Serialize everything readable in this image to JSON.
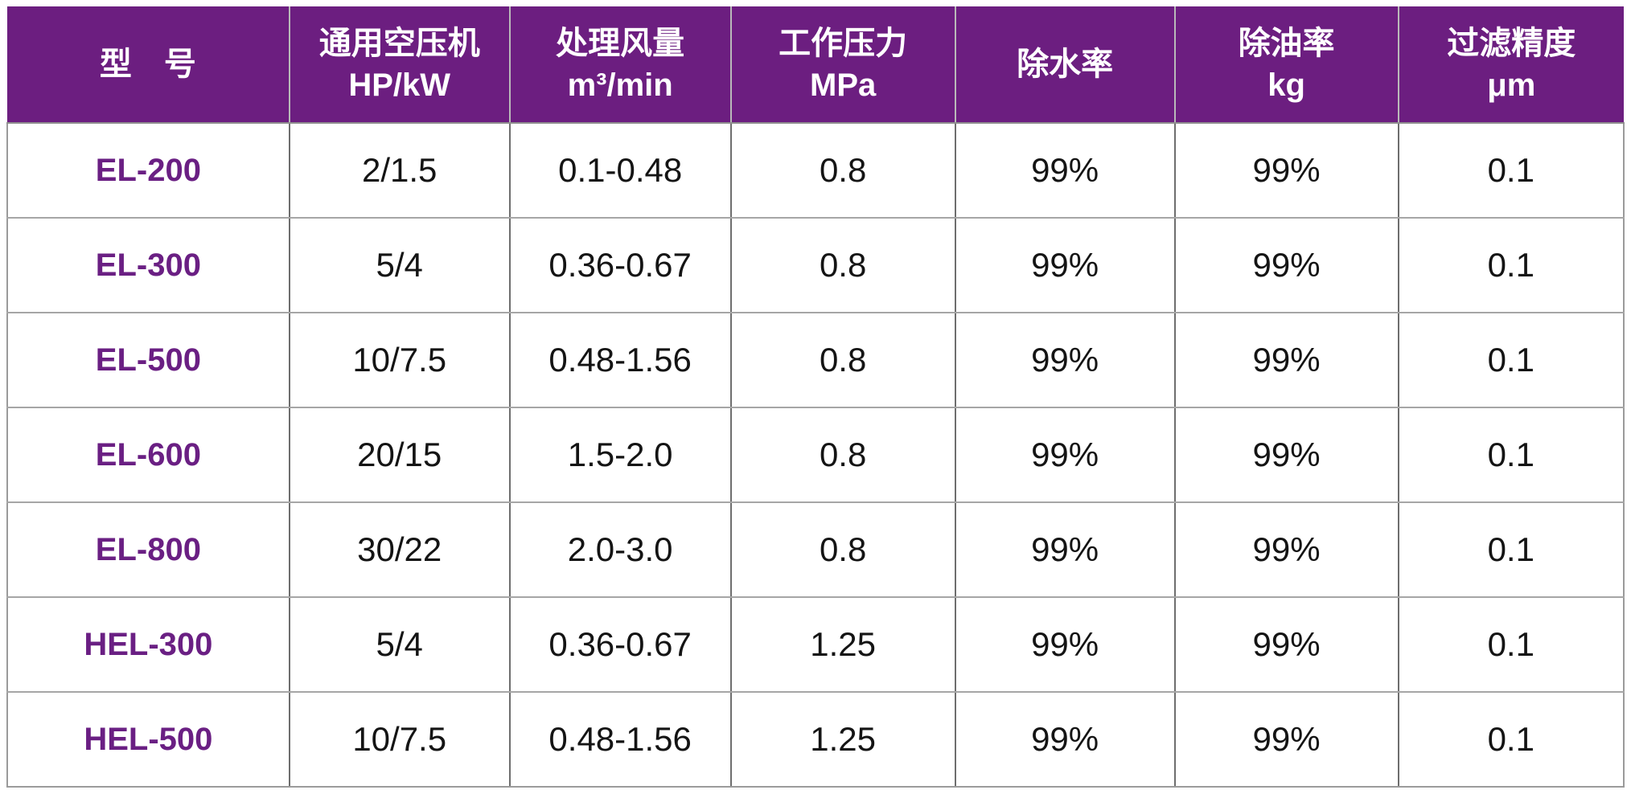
{
  "colors": {
    "header_bg": "#6C1E80",
    "model_text": "#6A1F83",
    "header_text": "#FFFFFF",
    "body_text": "#141414",
    "vertical_border": "#6E6E6E",
    "horizontal_border": "#A6A6A6"
  },
  "table": {
    "columns": [
      {
        "line1": "型　号",
        "line2": ""
      },
      {
        "line1": "通用空压机",
        "line2": "HP/kW"
      },
      {
        "line1": "处理风量",
        "line2": "m³/min"
      },
      {
        "line1": "工作压力",
        "line2": "MPa"
      },
      {
        "line1": "除水率",
        "line2": ""
      },
      {
        "line1": "除油率",
        "line2": "kg"
      },
      {
        "line1": "过滤精度",
        "line2": "μm"
      }
    ],
    "rows": [
      {
        "model": "EL-200",
        "hp_kw": "2/1.5",
        "flow": "0.1-0.48",
        "pressure": "0.8",
        "water_removal": "99%",
        "oil_removal": "99%",
        "precision": "0.1"
      },
      {
        "model": "EL-300",
        "hp_kw": "5/4",
        "flow": "0.36-0.67",
        "pressure": "0.8",
        "water_removal": "99%",
        "oil_removal": "99%",
        "precision": "0.1"
      },
      {
        "model": "EL-500",
        "hp_kw": "10/7.5",
        "flow": "0.48-1.56",
        "pressure": "0.8",
        "water_removal": "99%",
        "oil_removal": "99%",
        "precision": "0.1"
      },
      {
        "model": "EL-600",
        "hp_kw": "20/15",
        "flow": "1.5-2.0",
        "pressure": "0.8",
        "water_removal": "99%",
        "oil_removal": "99%",
        "precision": "0.1"
      },
      {
        "model": "EL-800",
        "hp_kw": "30/22",
        "flow": "2.0-3.0",
        "pressure": "0.8",
        "water_removal": "99%",
        "oil_removal": "99%",
        "precision": "0.1"
      },
      {
        "model": "HEL-300",
        "hp_kw": "5/4",
        "flow": "0.36-0.67",
        "pressure": "1.25",
        "water_removal": "99%",
        "oil_removal": "99%",
        "precision": "0.1"
      },
      {
        "model": "HEL-500",
        "hp_kw": "10/7.5",
        "flow": "0.48-1.56",
        "pressure": "1.25",
        "water_removal": "99%",
        "oil_removal": "99%",
        "precision": "0.1"
      }
    ]
  }
}
